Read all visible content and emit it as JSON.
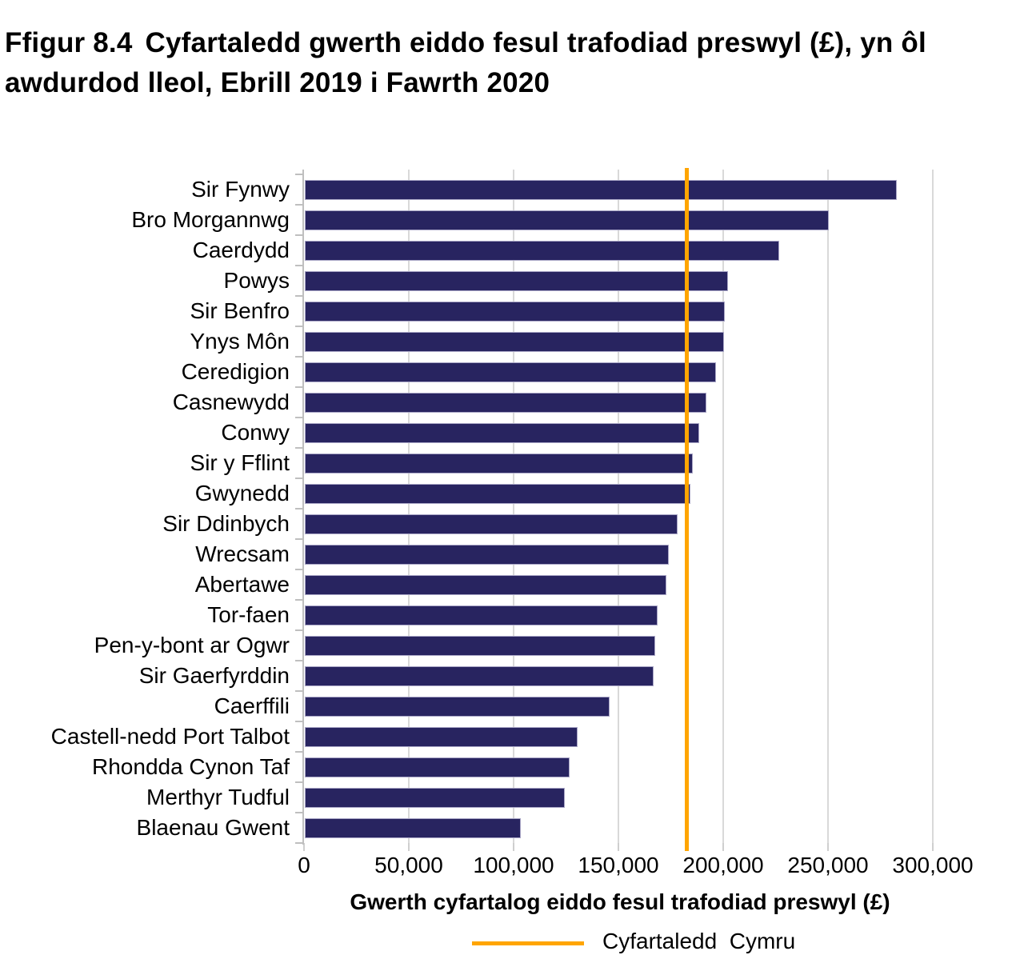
{
  "title": {
    "prefix": "Ffigur 8.4",
    "text": "Cyfartaledd gwerth eiddo fesul trafodiad preswyl (£), yn ôl awdurdod lleol, Ebrill 2019 i Fawrth 2020"
  },
  "chart_data": {
    "type": "bar",
    "orientation": "horizontal",
    "categories": [
      "Sir Fynwy",
      "Bro Morgannwg",
      "Caerdydd",
      "Powys",
      "Sir Benfro",
      "Ynys Môn",
      "Ceredigion",
      "Casnewydd",
      "Conwy",
      "Sir y Fflint",
      "Gwynedd",
      "Sir Ddinbych",
      "Wrecsam",
      "Abertawe",
      "Tor-faen",
      "Pen-y-bont ar Ogwr",
      "Sir Gaerfyrddin",
      "Caerffili",
      "Castell-nedd Port Talbot",
      "Rhondda Cynon Taf",
      "Merthyr Tudful",
      "Blaenau Gwent"
    ],
    "values": [
      282500,
      250000,
      226500,
      202000,
      200500,
      200000,
      196000,
      191500,
      188000,
      185000,
      184000,
      178000,
      173500,
      172500,
      168500,
      167000,
      166500,
      145500,
      130000,
      126500,
      124000,
      103000
    ],
    "xlabel": "Gwerth cyfartalog eiddo fesul trafodiad preswyl (£)",
    "xlim": [
      0,
      300000
    ],
    "x_tick_interval": 50000,
    "x_tick_labels": [
      "0",
      "50,000",
      "100,000",
      "150,000",
      "200,000",
      "250,000",
      "300,000"
    ],
    "grid": true,
    "bar_color": "#282460",
    "bar_border_color": "#a9a6c6",
    "gridline_color": "#d9d9d9",
    "axis_color": "#bfbfbf",
    "reference_line": {
      "label": "Cyfartaledd  Cymru",
      "value": 182500,
      "color": "#FFA500"
    },
    "legend_position": "bottom"
  }
}
